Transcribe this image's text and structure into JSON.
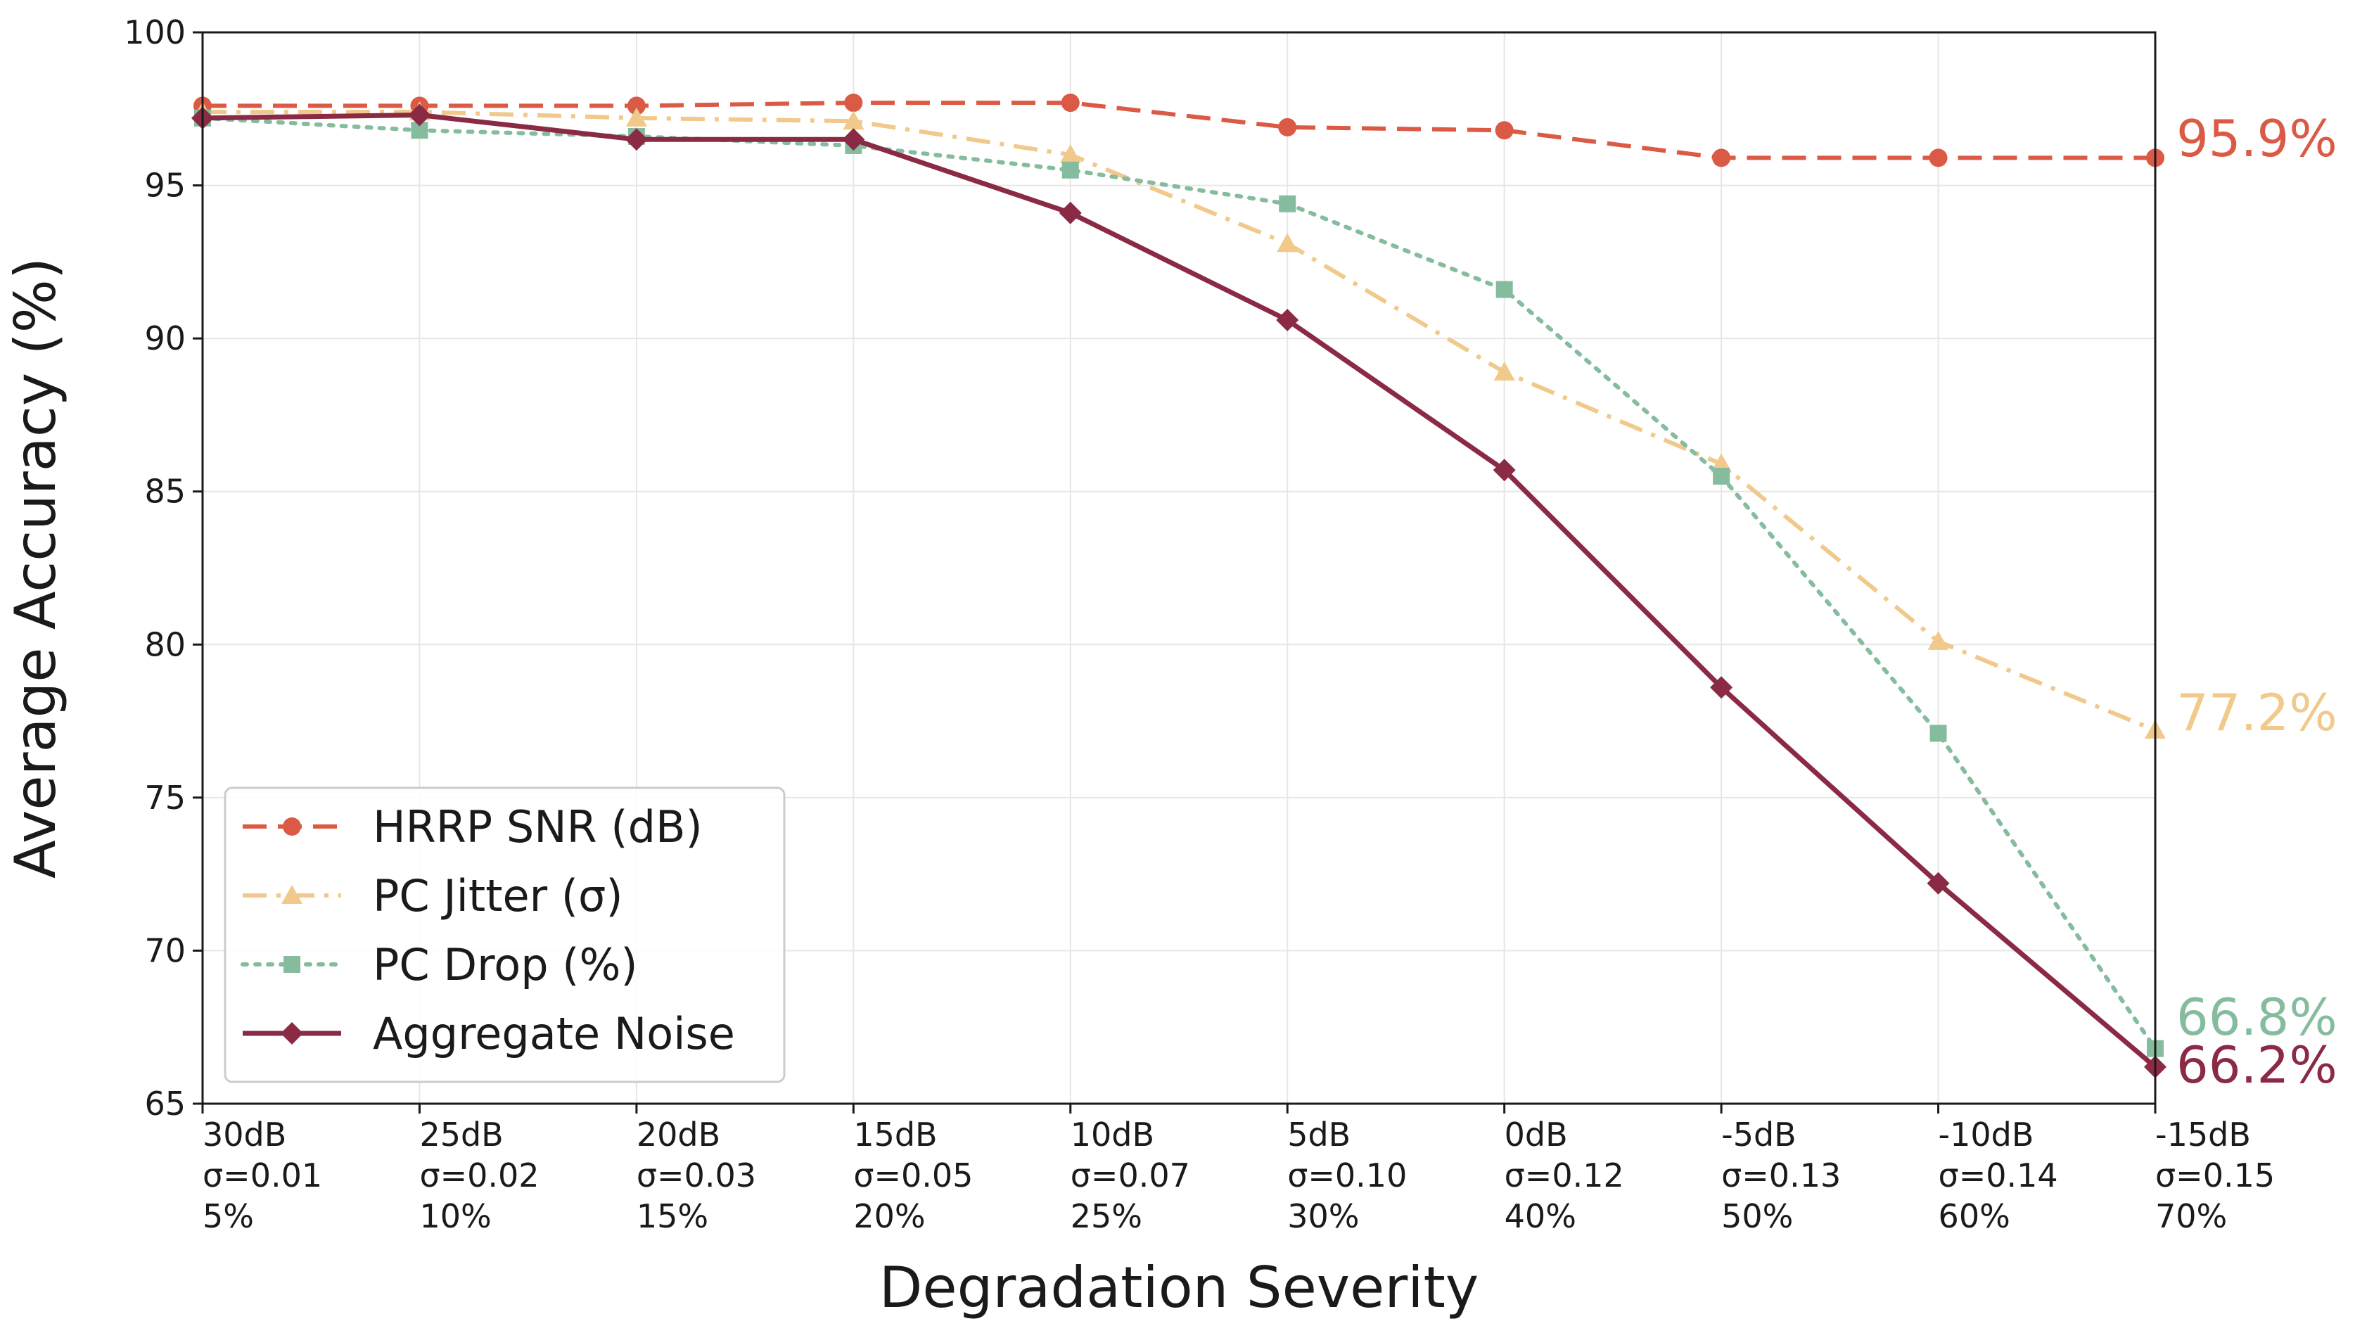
{
  "chart_data": {
    "type": "line",
    "title": "",
    "xlabel": "Degradation Severity",
    "ylabel": "Average Accuracy (%)",
    "ylim": [
      65,
      100
    ],
    "yticks": [
      "65",
      "70",
      "75",
      "80",
      "85",
      "90",
      "95",
      "100"
    ],
    "categories": [
      [
        "30dB",
        "σ=0.01",
        "5%"
      ],
      [
        "25dB",
        "σ=0.02",
        "10%"
      ],
      [
        "20dB",
        "σ=0.03",
        "15%"
      ],
      [
        "15dB",
        "σ=0.05",
        "20%"
      ],
      [
        "10dB",
        "σ=0.07",
        "25%"
      ],
      [
        "5dB",
        "σ=0.10",
        "30%"
      ],
      [
        "0dB",
        "σ=0.12",
        "40%"
      ],
      [
        "-5dB",
        "σ=0.13",
        "50%"
      ],
      [
        "-10dB",
        "σ=0.14",
        "60%"
      ],
      [
        "-15dB",
        "σ=0.15",
        "70%"
      ]
    ],
    "grid": true,
    "legend_position": "bottom-left",
    "series": [
      {
        "name": "HRRP SNR (dB)",
        "color": "#db5a45",
        "line_style": "dashed",
        "marker": "circle",
        "values": [
          97.6,
          97.6,
          97.6,
          97.7,
          97.7,
          96.9,
          96.8,
          95.9,
          95.9,
          95.9
        ],
        "end_label": "95.9%"
      },
      {
        "name": "PC Jitter (σ)",
        "color": "#f0c98b",
        "line_style": "dashdot",
        "marker": "triangle",
        "values": [
          97.4,
          97.4,
          97.2,
          97.1,
          96.0,
          93.1,
          88.9,
          85.9,
          80.1,
          77.2
        ],
        "end_label": "77.2%"
      },
      {
        "name": "PC Drop (%)",
        "color": "#86bc9e",
        "line_style": "dotted",
        "marker": "square",
        "values": [
          97.2,
          96.8,
          96.6,
          96.3,
          95.5,
          94.4,
          91.6,
          85.5,
          77.1,
          66.8
        ],
        "end_label": "66.8%"
      },
      {
        "name": "Aggregate Noise",
        "color": "#8b2a45",
        "line_style": "solid",
        "marker": "diamond",
        "values": [
          97.2,
          97.3,
          96.5,
          96.5,
          94.1,
          90.6,
          85.7,
          78.6,
          72.2,
          66.2
        ],
        "end_label": "66.2%"
      }
    ]
  }
}
